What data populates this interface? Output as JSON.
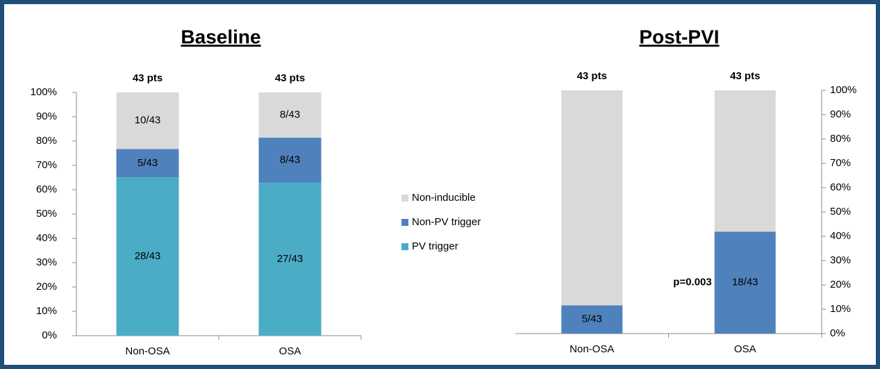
{
  "chart_data": [
    {
      "type": "bar",
      "stacked": true,
      "title": "Baseline",
      "categories": [
        "Non-OSA",
        "OSA"
      ],
      "bar_top_labels": [
        "43 pts",
        "43 pts"
      ],
      "series": [
        {
          "name": "PV trigger",
          "color": "#4bacc6",
          "values": [
            65.1,
            62.8
          ],
          "value_labels": [
            "28/43",
            "27/43"
          ]
        },
        {
          "name": "Non-PV trigger",
          "color": "#4f81bd",
          "values": [
            11.6,
            18.6
          ],
          "value_labels": [
            "5/43",
            "8/43"
          ]
        },
        {
          "name": "Non-inducible",
          "color": "#d9d9d9",
          "values": [
            23.3,
            18.6
          ],
          "value_labels": [
            "10/43",
            "8/43"
          ]
        }
      ],
      "ylim": [
        0,
        100
      ],
      "yticks": [
        {
          "value": 0,
          "label": "0%"
        },
        {
          "value": 10,
          "label": "10%"
        },
        {
          "value": 20,
          "label": "20%"
        },
        {
          "value": 30,
          "label": "30%"
        },
        {
          "value": 40,
          "label": "40%"
        },
        {
          "value": 50,
          "label": "50%"
        },
        {
          "value": 60,
          "label": "60%"
        },
        {
          "value": 70,
          "label": "70%"
        },
        {
          "value": 80,
          "label": "80%"
        },
        {
          "value": 90,
          "label": "90%"
        },
        {
          "value": 100,
          "label": "100%"
        }
      ],
      "y_axis_side": "left",
      "legend": "right"
    },
    {
      "type": "bar",
      "stacked": true,
      "title": "Post-PVI",
      "categories": [
        "Non-OSA",
        "OSA"
      ],
      "bar_top_labels": [
        "43 pts",
        "43 pts"
      ],
      "annotation": "p=0.003",
      "series": [
        {
          "color": "#4f81bd",
          "values": [
            11.6,
            41.9
          ],
          "value_labels": [
            "5/43",
            "18/43"
          ]
        },
        {
          "color": "#d9d9d9",
          "values": [
            88.4,
            58.1
          ]
        }
      ],
      "ylim": [
        0,
        100
      ],
      "yticks": [
        {
          "value": 0,
          "label": "0%"
        },
        {
          "value": 10,
          "label": "10%"
        },
        {
          "value": 20,
          "label": "20%"
        },
        {
          "value": 30,
          "label": "30%"
        },
        {
          "value": 40,
          "label": "40%"
        },
        {
          "value": 50,
          "label": "50%"
        },
        {
          "value": 60,
          "label": "60%"
        },
        {
          "value": 70,
          "label": "70%"
        },
        {
          "value": 80,
          "label": "80%"
        },
        {
          "value": 90,
          "label": "90%"
        },
        {
          "value": 100,
          "label": "100%"
        }
      ],
      "y_axis_side": "right"
    }
  ]
}
